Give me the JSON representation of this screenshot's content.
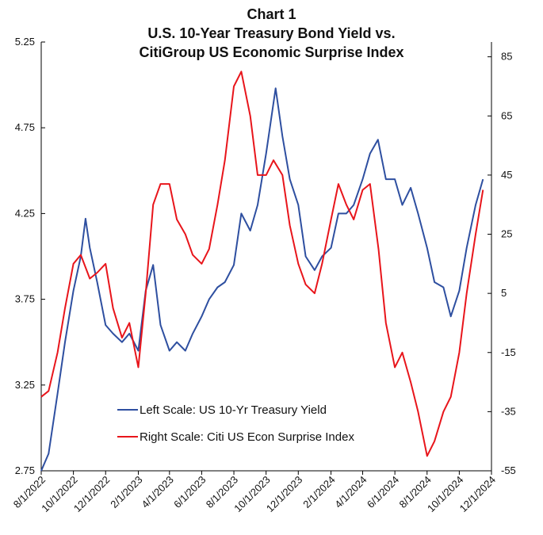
{
  "chart_data": {
    "type": "line",
    "title_lines": [
      "Chart 1",
      "U.S. 10-Year Treasury Bond Yield vs.",
      "CitiGroup US Economic Surprise Index"
    ],
    "left_axis": {
      "ticks": [
        "5.25",
        "4.75",
        "4.25",
        "3.75",
        "3.25",
        "2.75"
      ],
      "ylim": [
        2.75,
        5.25
      ]
    },
    "right_axis": {
      "ticks": [
        "85",
        "65",
        "45",
        "25",
        "5",
        "-15",
        "-35",
        "-55"
      ],
      "ylim": [
        -55,
        90
      ]
    },
    "x_ticks": [
      "8/1/2022",
      "10/1/2022",
      "12/1/2022",
      "2/1/2023",
      "4/1/2023",
      "6/1/2023",
      "8/1/2023",
      "10/1/2023",
      "12/1/2023",
      "2/1/2024",
      "4/1/2024",
      "6/1/2024",
      "8/1/2024",
      "10/1/2024",
      "12/1/2024"
    ],
    "x_range": [
      "8/1/2022",
      "12/1/2024"
    ],
    "grid": false,
    "legend_position": "center-left",
    "series": [
      {
        "name": "Left Scale: US 10-Yr Treasury Yield",
        "axis": "left",
        "color": "#2e4fa0",
        "x": [
          "8/1/2022",
          "8/15/2022",
          "9/1/2022",
          "9/15/2022",
          "10/1/2022",
          "10/15/2022",
          "10/24/2022",
          "11/1/2022",
          "11/15/2022",
          "12/1/2022",
          "12/15/2022",
          "1/1/2023",
          "1/15/2023",
          "2/1/2023",
          "2/15/2023",
          "3/1/2023",
          "3/15/2023",
          "4/1/2023",
          "4/15/2023",
          "5/1/2023",
          "5/15/2023",
          "6/1/2023",
          "6/15/2023",
          "7/1/2023",
          "7/15/2023",
          "8/1/2023",
          "8/15/2023",
          "9/1/2023",
          "9/15/2023",
          "10/1/2023",
          "10/19/2023",
          "11/1/2023",
          "11/15/2023",
          "12/1/2023",
          "12/15/2023",
          "1/1/2024",
          "1/15/2024",
          "2/1/2024",
          "2/15/2024",
          "3/1/2024",
          "3/15/2024",
          "4/1/2024",
          "4/15/2024",
          "4/30/2024",
          "5/15/2024",
          "6/1/2024",
          "6/15/2024",
          "7/1/2024",
          "7/15/2024",
          "8/1/2024",
          "8/15/2024",
          "9/1/2024",
          "9/15/2024",
          "10/1/2024",
          "10/15/2024",
          "11/1/2024",
          "11/15/2024"
        ],
        "values": [
          2.75,
          2.85,
          3.2,
          3.5,
          3.8,
          4.0,
          4.22,
          4.05,
          3.85,
          3.6,
          3.55,
          3.5,
          3.55,
          3.45,
          3.8,
          3.95,
          3.6,
          3.45,
          3.5,
          3.45,
          3.55,
          3.65,
          3.75,
          3.82,
          3.85,
          3.95,
          4.25,
          4.15,
          4.3,
          4.6,
          4.98,
          4.7,
          4.45,
          4.3,
          4.0,
          3.92,
          4.0,
          4.05,
          4.25,
          4.25,
          4.3,
          4.45,
          4.6,
          4.68,
          4.45,
          4.45,
          4.3,
          4.4,
          4.25,
          4.05,
          3.85,
          3.82,
          3.65,
          3.8,
          4.05,
          4.3,
          4.45
        ]
      },
      {
        "name": "Right Scale: Citi US Econ Surprise Index",
        "axis": "right",
        "color": "#e8151b",
        "x": [
          "8/1/2022",
          "8/15/2022",
          "9/1/2022",
          "9/15/2022",
          "10/1/2022",
          "10/15/2022",
          "11/1/2022",
          "11/15/2022",
          "12/1/2022",
          "12/15/2022",
          "1/1/2023",
          "1/15/2023",
          "2/1/2023",
          "2/15/2023",
          "3/1/2023",
          "3/15/2023",
          "4/1/2023",
          "4/15/2023",
          "5/1/2023",
          "5/15/2023",
          "6/1/2023",
          "6/15/2023",
          "7/1/2023",
          "7/15/2023",
          "8/1/2023",
          "8/15/2023",
          "9/1/2023",
          "9/15/2023",
          "10/1/2023",
          "10/15/2023",
          "11/1/2023",
          "11/15/2023",
          "12/1/2023",
          "12/15/2023",
          "1/1/2024",
          "1/15/2024",
          "2/1/2024",
          "2/15/2024",
          "3/1/2024",
          "3/15/2024",
          "4/1/2024",
          "4/15/2024",
          "5/1/2024",
          "5/15/2024",
          "6/1/2024",
          "6/15/2024",
          "7/1/2024",
          "7/15/2024",
          "8/1/2024",
          "8/15/2024",
          "9/1/2024",
          "9/15/2024",
          "10/1/2024",
          "10/15/2024",
          "11/1/2024",
          "11/15/2024"
        ],
        "values": [
          -30,
          -28,
          -15,
          0,
          15,
          18,
          10,
          12,
          15,
          0,
          -10,
          -5,
          -20,
          5,
          35,
          42,
          42,
          30,
          25,
          18,
          15,
          20,
          35,
          50,
          75,
          80,
          65,
          45,
          45,
          50,
          45,
          28,
          15,
          8,
          5,
          15,
          30,
          42,
          35,
          30,
          40,
          42,
          20,
          -5,
          -20,
          -15,
          -25,
          -35,
          -50,
          -45,
          -35,
          -30,
          -15,
          5,
          25,
          40
        ]
      }
    ],
    "legend": [
      "Left Scale: US 10-Yr Treasury Yield",
      "Right Scale: Citi US Econ Surprise Index"
    ]
  }
}
